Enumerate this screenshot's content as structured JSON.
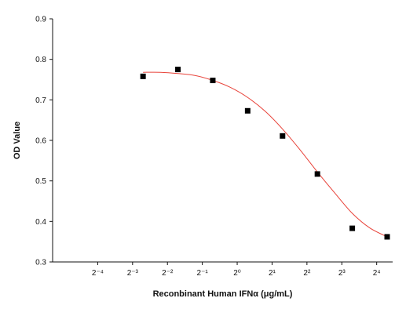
{
  "chart_data": {
    "type": "scatter",
    "title": "",
    "xlabel": "Reconbinant Human IFNα (μg/mL)",
    "ylabel": "OD Value",
    "x_scale": "log2",
    "x_tick_exponents": [
      -4,
      -3,
      -2,
      -1,
      0,
      1,
      2,
      3,
      4
    ],
    "x_tick_labels": [
      "2⁻⁴",
      "2⁻³",
      "2⁻²",
      "2⁻¹",
      "2⁰",
      "2¹",
      "2²",
      "2³",
      "2⁴"
    ],
    "xlim_exponent": [
      -5,
      4.3
    ],
    "ylim": [
      0.3,
      0.9
    ],
    "y_ticks": [
      0.3,
      0.4,
      0.5,
      0.6,
      0.7,
      0.8,
      0.9
    ],
    "y_tick_labels": [
      "0.3",
      "0.4",
      "0.5",
      "0.6",
      "0.7",
      "0.8",
      "0.9"
    ],
    "grid": false,
    "legend": "none",
    "series": [
      {
        "type": "scatter",
        "marker": "square",
        "color": "#000000",
        "x_exponents": [
          -2.7,
          -1.7,
          -0.7,
          0.3,
          1.3,
          2.3,
          3.3,
          4.3
        ],
        "values": [
          0.758,
          0.775,
          0.748,
          0.673,
          0.611,
          0.517,
          0.383,
          0.362
        ]
      },
      {
        "type": "line",
        "fit": "sigmoid",
        "color": "#e8433a",
        "x_exponents": [
          -2.7,
          -2.2,
          -1.7,
          -1.2,
          -0.7,
          -0.2,
          0.3,
          0.8,
          1.3,
          1.8,
          2.3,
          2.8,
          3.3,
          3.8,
          4.3
        ],
        "values": [
          0.768,
          0.768,
          0.765,
          0.76,
          0.748,
          0.731,
          0.706,
          0.672,
          0.628,
          0.577,
          0.522,
          0.47,
          0.42,
          0.384,
          0.362
        ]
      }
    ]
  }
}
